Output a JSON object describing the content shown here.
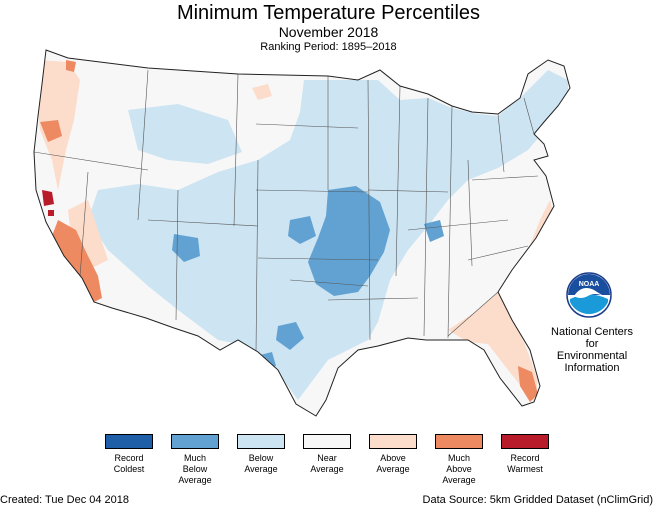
{
  "header": {
    "title": "Minimum Temperature Percentiles",
    "subtitle": "November 2018",
    "ranking_period": "Ranking Period: 1895–2018"
  },
  "legend": {
    "items": [
      {
        "label": "Record\nColdest",
        "color": "#1f5fa8"
      },
      {
        "label": "Much\nBelow\nAverage",
        "color": "#62a2d2"
      },
      {
        "label": "Below\nAverage",
        "color": "#cde4f2"
      },
      {
        "label": "Near\nAverage",
        "color": "#f7f7f7"
      },
      {
        "label": "Above\nAverage",
        "color": "#fcdcca"
      },
      {
        "label": "Much\nAbove\nAverage",
        "color": "#ee8a62"
      },
      {
        "label": "Record\nWarmest",
        "color": "#b81c2b"
      }
    ]
  },
  "logo": {
    "org_name": "National Centers for\nEnvironmental\nInformation",
    "logo_text": "NOAA",
    "icon": "noaa-logo-icon"
  },
  "footer": {
    "created": "Created: Tue Dec 04 2018",
    "source": "Data Source: 5km Gridded Dataset (nClimGrid)"
  },
  "map_data": {
    "colors": {
      "near_average": "#f7f7f7",
      "below": "#cde4f2",
      "much_below": "#62a2d2",
      "above": "#fcdcca",
      "much_above": "#ee8a62",
      "record_warm": "#b81c2b",
      "border": "#333333"
    }
  }
}
